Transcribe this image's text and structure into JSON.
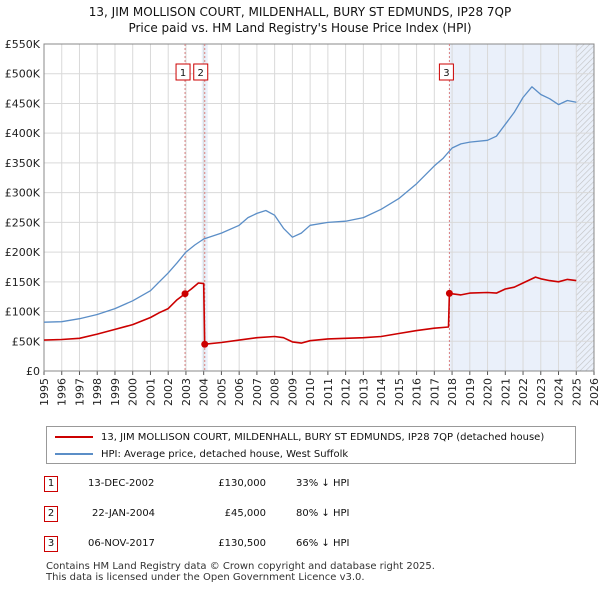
{
  "chart_data": {
    "type": "line",
    "title": "13, JIM MOLLISON COURT, MILDENHALL, BURY ST EDMUNDS, IP28 7QP",
    "subtitle": "Price paid vs. HM Land Registry's House Price Index (HPI)",
    "xlim": [
      1995,
      2026
    ],
    "ylim": [
      0,
      550000
    ],
    "x_ticks": [
      "1995",
      "1996",
      "1997",
      "1998",
      "1999",
      "2000",
      "2001",
      "2002",
      "2003",
      "2004",
      "2005",
      "2006",
      "2007",
      "2008",
      "2009",
      "2010",
      "2011",
      "2012",
      "2013",
      "2014",
      "2015",
      "2016",
      "2017",
      "2018",
      "2019",
      "2020",
      "2021",
      "2022",
      "2023",
      "2024",
      "2025",
      "2026"
    ],
    "y_ticks": [
      {
        "value": 0,
        "label": "£0"
      },
      {
        "value": 50000,
        "label": "£50K"
      },
      {
        "value": 100000,
        "label": "£100K"
      },
      {
        "value": 150000,
        "label": "£150K"
      },
      {
        "value": 200000,
        "label": "£200K"
      },
      {
        "value": 250000,
        "label": "£250K"
      },
      {
        "value": 300000,
        "label": "£300K"
      },
      {
        "value": 350000,
        "label": "£350K"
      },
      {
        "value": 400000,
        "label": "£400K"
      },
      {
        "value": 450000,
        "label": "£450K"
      },
      {
        "value": 500000,
        "label": "£500K"
      },
      {
        "value": 550000,
        "label": "£550K"
      }
    ],
    "grid": true,
    "future_shade_start": 2025.0,
    "series": [
      {
        "name": "13, JIM MOLLISON COURT, MILDENHALL, BURY ST EDMUNDS, IP28 7QP (detached house)",
        "color": "#cc0000",
        "points": [
          [
            1995.0,
            52000
          ],
          [
            1996.0,
            53000
          ],
          [
            1997.0,
            55000
          ],
          [
            1998.0,
            62000
          ],
          [
            1999.0,
            70000
          ],
          [
            2000.0,
            78000
          ],
          [
            2001.0,
            90000
          ],
          [
            2001.5,
            98000
          ],
          [
            2002.0,
            105000
          ],
          [
            2002.5,
            120000
          ],
          [
            2002.95,
            130000
          ],
          [
            2003.3,
            138000
          ],
          [
            2003.7,
            148000
          ],
          [
            2004.0,
            147000
          ],
          [
            2004.06,
            45000
          ],
          [
            2005.0,
            48000
          ],
          [
            2006.0,
            52000
          ],
          [
            2007.0,
            56000
          ],
          [
            2008.0,
            58000
          ],
          [
            2008.5,
            56000
          ],
          [
            2009.0,
            49000
          ],
          [
            2009.5,
            47000
          ],
          [
            2010.0,
            51000
          ],
          [
            2011.0,
            54000
          ],
          [
            2012.0,
            55000
          ],
          [
            2013.0,
            56000
          ],
          [
            2014.0,
            58000
          ],
          [
            2015.0,
            63000
          ],
          [
            2016.0,
            68000
          ],
          [
            2017.0,
            72000
          ],
          [
            2017.8,
            74000
          ],
          [
            2017.85,
            130500
          ],
          [
            2018.5,
            128000
          ],
          [
            2019.0,
            131000
          ],
          [
            2020.0,
            132000
          ],
          [
            2020.5,
            131000
          ],
          [
            2021.0,
            138000
          ],
          [
            2021.5,
            141000
          ],
          [
            2022.0,
            148000
          ],
          [
            2022.7,
            158000
          ],
          [
            2023.0,
            155000
          ],
          [
            2023.5,
            152000
          ],
          [
            2024.0,
            150000
          ],
          [
            2024.5,
            154000
          ],
          [
            2025.0,
            152000
          ]
        ]
      },
      {
        "name": "HPI: Average price, detached house, West Suffolk",
        "color": "#5b8ec7",
        "points": [
          [
            1995.0,
            82000
          ],
          [
            1996.0,
            83000
          ],
          [
            1997.0,
            88000
          ],
          [
            1998.0,
            95000
          ],
          [
            1999.0,
            105000
          ],
          [
            2000.0,
            118000
          ],
          [
            2001.0,
            135000
          ],
          [
            2001.5,
            150000
          ],
          [
            2002.0,
            165000
          ],
          [
            2002.5,
            182000
          ],
          [
            2003.0,
            200000
          ],
          [
            2003.5,
            212000
          ],
          [
            2004.0,
            222000
          ],
          [
            2005.0,
            232000
          ],
          [
            2006.0,
            245000
          ],
          [
            2006.5,
            258000
          ],
          [
            2007.0,
            265000
          ],
          [
            2007.5,
            270000
          ],
          [
            2008.0,
            262000
          ],
          [
            2008.5,
            240000
          ],
          [
            2009.0,
            225000
          ],
          [
            2009.5,
            232000
          ],
          [
            2010.0,
            245000
          ],
          [
            2011.0,
            250000
          ],
          [
            2012.0,
            252000
          ],
          [
            2013.0,
            258000
          ],
          [
            2014.0,
            272000
          ],
          [
            2015.0,
            290000
          ],
          [
            2016.0,
            315000
          ],
          [
            2017.0,
            345000
          ],
          [
            2017.5,
            358000
          ],
          [
            2018.0,
            375000
          ],
          [
            2018.5,
            382000
          ],
          [
            2019.0,
            385000
          ],
          [
            2020.0,
            388000
          ],
          [
            2020.5,
            395000
          ],
          [
            2021.0,
            415000
          ],
          [
            2021.5,
            435000
          ],
          [
            2022.0,
            460000
          ],
          [
            2022.5,
            478000
          ],
          [
            2023.0,
            465000
          ],
          [
            2023.5,
            458000
          ],
          [
            2024.0,
            448000
          ],
          [
            2024.5,
            455000
          ],
          [
            2025.0,
            452000
          ]
        ]
      }
    ],
    "transactions": [
      {
        "id": "1",
        "date": "13-DEC-2002",
        "x": 2002.95,
        "price": 130000,
        "price_label": "£130,000",
        "hpi_label": "33% ↓ HPI"
      },
      {
        "id": "2",
        "date": "22-JAN-2004",
        "x": 2004.06,
        "price": 45000,
        "price_label": "£45,000",
        "hpi_label": "80% ↓ HPI"
      },
      {
        "id": "3",
        "date": "06-NOV-2017",
        "x": 2017.85,
        "price": 130500,
        "price_label": "£130,500",
        "hpi_label": "66% ↓ HPI"
      }
    ]
  },
  "colors": {
    "grid": "#d9d9d9",
    "plot_bg": "#ffffff",
    "shade": "#eaf0fa",
    "marker_line": "#d98080",
    "hatch": "#bbbbbb"
  },
  "footer": {
    "line1": "Contains HM Land Registry data © Crown copyright and database right 2025.",
    "line2": "This data is licensed under the Open Government Licence v3.0."
  }
}
